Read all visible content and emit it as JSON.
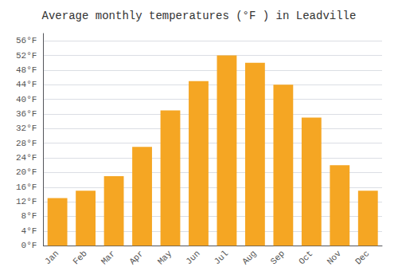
{
  "chart_data": {
    "type": "bar",
    "title": "Average monthly temperatures (°F ) in Leadville",
    "categories": [
      "Jan",
      "Feb",
      "Mar",
      "Apr",
      "May",
      "Jun",
      "Jul",
      "Aug",
      "Sep",
      "Oct",
      "Nov",
      "Dec"
    ],
    "values": [
      13,
      15,
      19,
      27,
      37,
      45,
      52,
      50,
      44,
      35,
      22,
      15
    ],
    "color": "#F5A623",
    "ylim": [
      0,
      58
    ],
    "yticks": [
      {
        "value": 0,
        "label": "0°F"
      },
      {
        "value": 4,
        "label": "4°F"
      },
      {
        "value": 8,
        "label": "8°F"
      },
      {
        "value": 12,
        "label": "12°F"
      },
      {
        "value": 16,
        "label": "16°F"
      },
      {
        "value": 20,
        "label": "20°F"
      },
      {
        "value": 24,
        "label": "24°F"
      },
      {
        "value": 28,
        "label": "28°F"
      },
      {
        "value": 32,
        "label": "32°F"
      },
      {
        "value": 36,
        "label": "36°F"
      },
      {
        "value": 40,
        "label": "40°F"
      },
      {
        "value": 44,
        "label": "44°F"
      },
      {
        "value": 48,
        "label": "48°F"
      },
      {
        "value": 52,
        "label": "52°F"
      },
      {
        "value": 56,
        "label": "56°F"
      }
    ],
    "grid": true
  }
}
